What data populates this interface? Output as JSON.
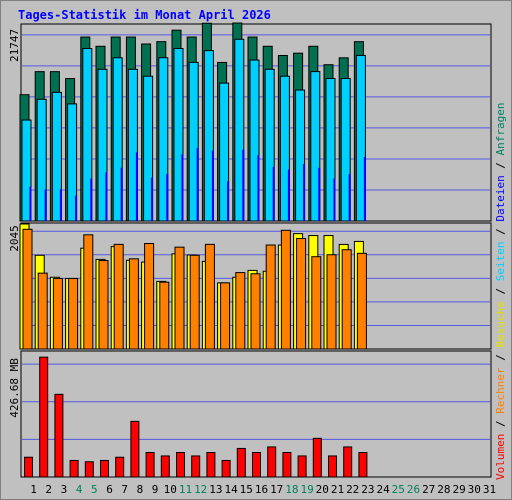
{
  "chart_data": {
    "type": "bar",
    "title": "Tages-Statistik im Monat April 2026",
    "x": [
      "1",
      "2",
      "3",
      "4",
      "5",
      "6",
      "7",
      "8",
      "9",
      "10",
      "11",
      "12",
      "13",
      "14",
      "15",
      "16",
      "17",
      "18",
      "19",
      "20",
      "21",
      "22",
      "23",
      "24",
      "25",
      "26",
      "27",
      "28",
      "29",
      "30",
      "31"
    ],
    "weekend_days": [
      "4",
      "5",
      "11",
      "12",
      "18",
      "19",
      "25",
      "26"
    ],
    "panels": [
      {
        "name": "top",
        "max_label": "21747",
        "ymax": 21747,
        "series": [
          {
            "name": "Anfragen",
            "color": "#007050",
            "values": [
              14015,
              16571,
              16571,
              15804,
              20409,
              19386,
              20409,
              20409,
              19642,
              19898,
              21173,
              20409,
              21940,
              17595,
              21964,
              20409,
              19386,
              18364,
              18619,
              19386,
              17341,
              18107,
              19898,
              null,
              null,
              null,
              null,
              null,
              null,
              null,
              null
            ]
          },
          {
            "name": "Seiten",
            "color": "#00d0ff",
            "values": [
              11201,
              13504,
              14272,
              12992,
              19138,
              16833,
              18114,
              16833,
              16065,
              18114,
              19138,
              17600,
              18906,
              15297,
              20162,
              17857,
              16833,
              16065,
              14528,
              16576,
              15809,
              15809,
              18371,
              null,
              null,
              null,
              null,
              null,
              null,
              null,
              null
            ]
          },
          {
            "name": "Dateien",
            "color": "#0000ff",
            "values": [
              3800,
              3500,
              3500,
              2800,
              4700,
              5400,
              5900,
              7600,
              4800,
              5200,
              7400,
              8100,
              7800,
              4400,
              7900,
              7300,
              6000,
              5700,
              6300,
              5900,
              4700,
              5200,
              7100,
              null,
              null,
              null,
              null,
              null,
              null,
              null,
              null
            ]
          }
        ]
      },
      {
        "name": "middle",
        "max_label": "2045",
        "ymax": 2045,
        "series": [
          {
            "name": "Besuche",
            "color": "#ffff00",
            "values": [
              2045,
              1533,
              1174,
              1154,
              1649,
              1466,
              1675,
              1451,
              1422,
              1106,
              1557,
              1538,
              1433,
              1082,
              1174,
              1286,
              1272,
              1701,
              1887,
              1856,
              1856,
              1711,
              1760,
              null,
              null,
              null,
              null,
              null,
              null,
              null,
              null
            ]
          },
          {
            "name": "Rechner",
            "color": "#ff8000",
            "values": [
              1958,
              1241,
              1154,
              1154,
              1868,
              1447,
              1712,
              1475,
              1726,
              1093,
              1666,
              1533,
              1712,
              1082,
              1250,
              1231,
              1701,
              1942,
              1808,
              1510,
              1542,
              1624,
              1565,
              null,
              null,
              null,
              null,
              null,
              null,
              null,
              null
            ]
          }
        ]
      },
      {
        "name": "bottom",
        "max_label": "426.68 MB",
        "ymax": 582,
        "series": [
          {
            "name": "Volumen",
            "color": "#ff0000",
            "values": [
              92,
              558,
              385,
              77,
              71,
              77,
              92,
              259,
              114,
              98,
              114,
              98,
              114,
              77,
              133,
              114,
              140,
              114,
              98,
              180,
              98,
              140,
              114,
              null,
              null,
              null,
              null,
              null,
              null,
              null,
              null
            ]
          }
        ]
      }
    ],
    "legend": [
      "Volumen",
      "/",
      "Rechner",
      "/",
      "Besuche",
      "/",
      "Seiten",
      "/",
      "Dateien",
      "/",
      "Anfragen"
    ],
    "colors": {
      "background": "#c0c0c0",
      "grid": "#0000ff",
      "title": "#0000ff",
      "weekday_label": "#000000",
      "weekend_label": "#00805c",
      "separator": "#000000"
    }
  }
}
